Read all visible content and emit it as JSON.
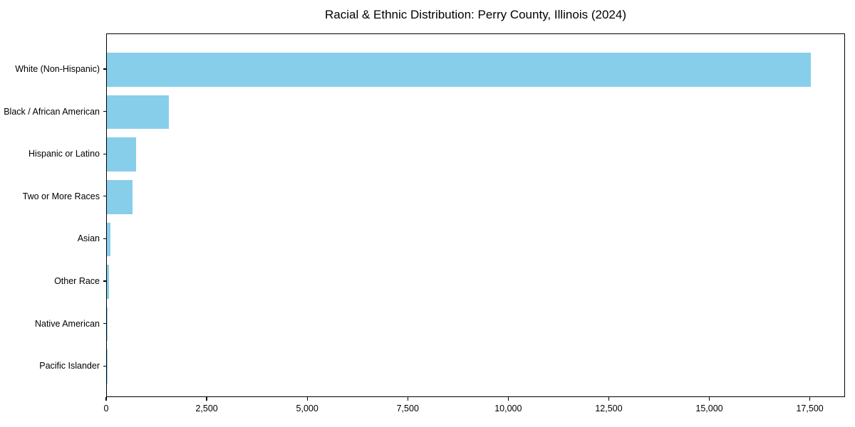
{
  "figure": {
    "background_color": "#FFFFFF"
  },
  "chart_data": {
    "type": "bar",
    "orientation": "horizontal",
    "title": "Racial & Ethnic Distribution: Perry County, Illinois (2024)",
    "categories": [
      "White (Non-Hispanic)",
      "Black / African American",
      "Hispanic or Latino",
      "Two or More Races",
      "Asian",
      "Other Race",
      "Native American",
      "Pacific Islander"
    ],
    "values": [
      17500,
      1550,
      730,
      640,
      90,
      60,
      20,
      5
    ],
    "xlabel": "",
    "ylabel": "",
    "xlim": [
      0,
      18375
    ],
    "x_ticks": [
      0,
      2500,
      5000,
      7500,
      10000,
      12500,
      15000,
      17500
    ],
    "x_tick_labels": [
      "0",
      "2,500",
      "5,000",
      "7,500",
      "10,000",
      "12,500",
      "15,000",
      "17,500"
    ],
    "bar_color": "#87CEEB",
    "axis_color": "#000000",
    "text_color": "#000000",
    "grid": false,
    "legend": false
  }
}
